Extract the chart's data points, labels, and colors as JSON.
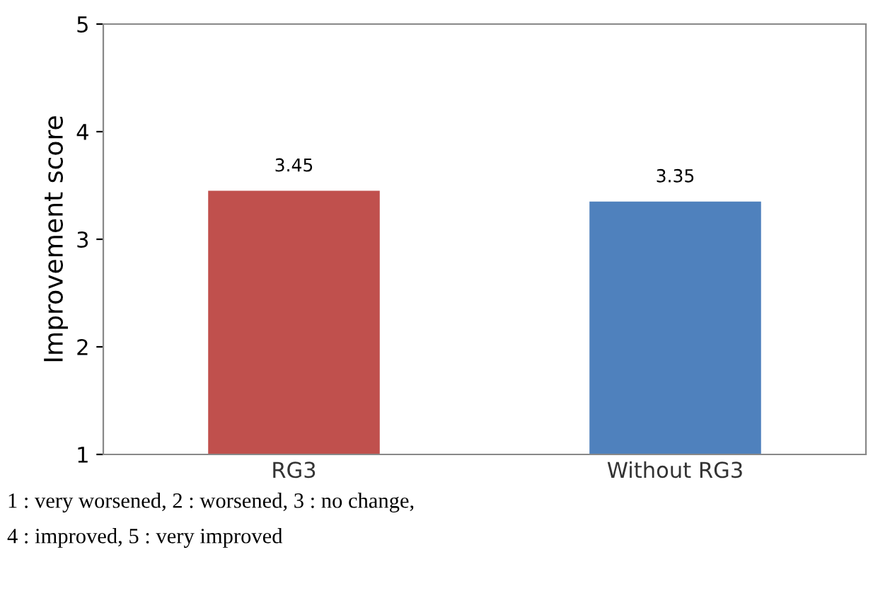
{
  "chart_data": {
    "type": "bar",
    "ylabel": "Improvement score",
    "categories": [
      "RG3",
      "Without RG3"
    ],
    "values": [
      3.45,
      3.35
    ],
    "colors": [
      "#c0504d",
      "#4f81bd"
    ],
    "ylim": [
      1,
      5
    ],
    "yticks": [
      1,
      2,
      3,
      4,
      5
    ],
    "data_labels": true,
    "grid": false,
    "legend": false,
    "annotations": [
      "1 : very worsened, 2 : worsened, 3 : no change,",
      "4 : improved, 5 : very improved"
    ]
  }
}
